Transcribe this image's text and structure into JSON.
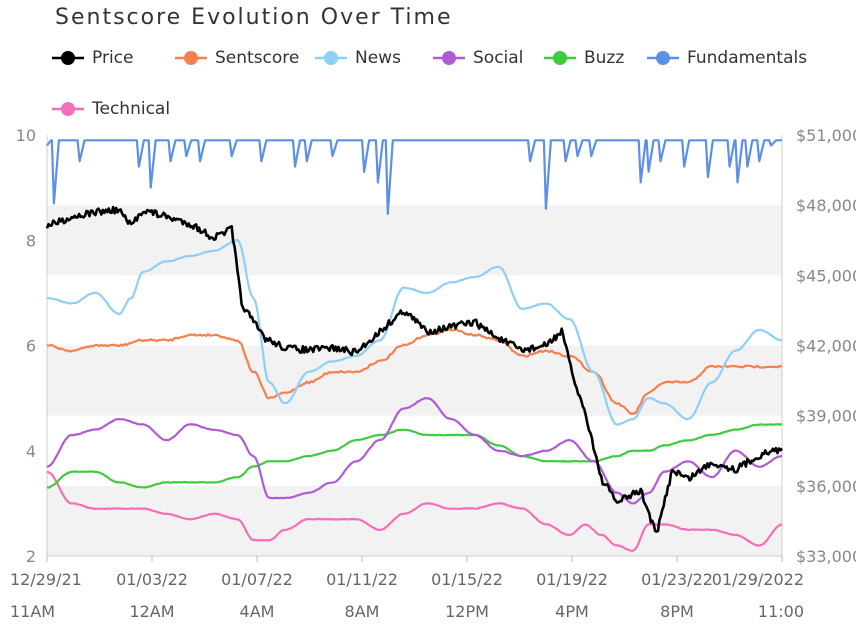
{
  "chart_data": {
    "type": "line",
    "title": "Sentscore Evolution Over Time",
    "x_tick_labels": [
      {
        "date": "12/29/21",
        "time": "11AM"
      },
      {
        "date": "01/03/22",
        "time": "12AM"
      },
      {
        "date": "01/07/22",
        "time": "4AM"
      },
      {
        "date": "01/11/22",
        "time": "8AM"
      },
      {
        "date": "01/15/22",
        "time": "12PM"
      },
      {
        "date": "01/19/22",
        "time": "4PM"
      },
      {
        "date": "01/23/22",
        "time": "8PM"
      },
      {
        "date": "01/29/2022",
        "time": "11:00"
      }
    ],
    "xlim": [
      "2021-12-29T11:00",
      "2022-01-29T11:00"
    ],
    "y_left": {
      "ylim": [
        2,
        10
      ],
      "ticks": [
        "2",
        "4",
        "6",
        "8",
        "10"
      ]
    },
    "y_right": {
      "ylim": [
        33000,
        51000
      ],
      "ticks": [
        "$33,000",
        "$36,000",
        "$39,000",
        "$42,000",
        "$45,000",
        "$48,000",
        "$51,000"
      ]
    },
    "grid": "horizontal bands",
    "legend_position": "top",
    "series": [
      {
        "name": "Price",
        "color": "#000000",
        "axis": "right",
        "points": [
          [
            "2021-12-29T11:00",
            47100
          ],
          [
            "2021-12-30T12:00",
            47500
          ],
          [
            "2021-12-31T12:00",
            47700
          ],
          [
            "2022-01-01T12:00",
            47800
          ],
          [
            "2022-01-02T00:00",
            47100
          ],
          [
            "2022-01-02T12:00",
            47800
          ],
          [
            "2022-01-03T12:00",
            47500
          ],
          [
            "2022-01-04T12:00",
            47200
          ],
          [
            "2022-01-05T12:00",
            46600
          ],
          [
            "2022-01-06T06:00",
            47000
          ],
          [
            "2022-01-06T16:00",
            43800
          ],
          [
            "2022-01-07T04:00",
            43000
          ],
          [
            "2022-01-07T16:00",
            42300
          ],
          [
            "2022-01-08T12:00",
            41900
          ],
          [
            "2022-01-09T12:00",
            41800
          ],
          [
            "2022-01-10T12:00",
            41900
          ],
          [
            "2022-01-11T12:00",
            41700
          ],
          [
            "2022-01-12T12:00",
            42600
          ],
          [
            "2022-01-13T12:00",
            43500
          ],
          [
            "2022-01-14T12:00",
            42600
          ],
          [
            "2022-01-15T12:00",
            42800
          ],
          [
            "2022-01-16T12:00",
            43000
          ],
          [
            "2022-01-17T12:00",
            42300
          ],
          [
            "2022-01-18T12:00",
            41800
          ],
          [
            "2022-01-19T12:00",
            42000
          ],
          [
            "2022-01-20T04:00",
            42600
          ],
          [
            "2022-01-20T16:00",
            40600
          ],
          [
            "2022-01-21T06:00",
            38800
          ],
          [
            "2022-01-21T20:00",
            36300
          ],
          [
            "2022-01-22T12:00",
            35300
          ],
          [
            "2022-01-23T12:00",
            35800
          ],
          [
            "2022-01-24T04:00",
            33900
          ],
          [
            "2022-01-24T20:00",
            36700
          ],
          [
            "2022-01-25T12:00",
            36300
          ],
          [
            "2022-01-26T12:00",
            37000
          ],
          [
            "2022-01-27T12:00",
            36700
          ],
          [
            "2022-01-28T12:00",
            37300
          ],
          [
            "2022-01-29T11:00",
            37600
          ]
        ]
      },
      {
        "name": "Sentscore",
        "color": "#f5804e",
        "axis": "left",
        "points": [
          [
            "2021-12-29T11:00",
            6.0
          ],
          [
            "2021-12-30T12:00",
            5.9
          ],
          [
            "2021-12-31T12:00",
            6.0
          ],
          [
            "2022-01-01T12:00",
            6.0
          ],
          [
            "2022-01-02T12:00",
            6.1
          ],
          [
            "2022-01-03T12:00",
            6.1
          ],
          [
            "2022-01-04T12:00",
            6.2
          ],
          [
            "2022-01-05T12:00",
            6.2
          ],
          [
            "2022-01-06T12:00",
            6.1
          ],
          [
            "2022-01-07T04:00",
            5.5
          ],
          [
            "2022-01-07T20:00",
            5.0
          ],
          [
            "2022-01-08T12:00",
            5.1
          ],
          [
            "2022-01-09T12:00",
            5.3
          ],
          [
            "2022-01-10T12:00",
            5.5
          ],
          [
            "2022-01-11T12:00",
            5.5
          ],
          [
            "2022-01-12T12:00",
            5.7
          ],
          [
            "2022-01-13T12:00",
            6.0
          ],
          [
            "2022-01-14T12:00",
            6.2
          ],
          [
            "2022-01-15T12:00",
            6.3
          ],
          [
            "2022-01-16T12:00",
            6.2
          ],
          [
            "2022-01-17T12:00",
            6.1
          ],
          [
            "2022-01-18T12:00",
            5.8
          ],
          [
            "2022-01-19T12:00",
            5.9
          ],
          [
            "2022-01-20T12:00",
            5.8
          ],
          [
            "2022-01-21T12:00",
            5.5
          ],
          [
            "2022-01-22T12:00",
            4.9
          ],
          [
            "2022-01-23T04:00",
            4.7
          ],
          [
            "2022-01-23T20:00",
            5.1
          ],
          [
            "2022-01-24T12:00",
            5.3
          ],
          [
            "2022-01-25T12:00",
            5.3
          ],
          [
            "2022-01-26T12:00",
            5.6
          ],
          [
            "2022-01-27T12:00",
            5.6
          ],
          [
            "2022-01-28T12:00",
            5.6
          ],
          [
            "2022-01-29T11:00",
            5.6
          ]
        ]
      },
      {
        "name": "News",
        "color": "#8ecff5",
        "axis": "left",
        "points": [
          [
            "2021-12-29T11:00",
            6.9
          ],
          [
            "2021-12-30T12:00",
            6.8
          ],
          [
            "2021-12-31T12:00",
            7.0
          ],
          [
            "2022-01-01T12:00",
            6.6
          ],
          [
            "2022-01-02T00:00",
            6.9
          ],
          [
            "2022-01-02T12:00",
            7.4
          ],
          [
            "2022-01-03T12:00",
            7.6
          ],
          [
            "2022-01-04T12:00",
            7.7
          ],
          [
            "2022-01-05T12:00",
            7.8
          ],
          [
            "2022-01-06T12:00",
            8.0
          ],
          [
            "2022-01-07T04:00",
            6.9
          ],
          [
            "2022-01-07T20:00",
            5.3
          ],
          [
            "2022-01-08T12:00",
            4.9
          ],
          [
            "2022-01-09T12:00",
            5.5
          ],
          [
            "2022-01-10T12:00",
            5.7
          ],
          [
            "2022-01-11T12:00",
            5.8
          ],
          [
            "2022-01-12T12:00",
            6.1
          ],
          [
            "2022-01-13T12:00",
            7.1
          ],
          [
            "2022-01-14T12:00",
            7.0
          ],
          [
            "2022-01-15T12:00",
            7.2
          ],
          [
            "2022-01-16T12:00",
            7.3
          ],
          [
            "2022-01-17T12:00",
            7.5
          ],
          [
            "2022-01-18T12:00",
            6.7
          ],
          [
            "2022-01-19T12:00",
            6.8
          ],
          [
            "2022-01-20T12:00",
            6.5
          ],
          [
            "2022-01-21T12:00",
            5.5
          ],
          [
            "2022-01-22T12:00",
            4.5
          ],
          [
            "2022-01-23T04:00",
            4.6
          ],
          [
            "2022-01-23T20:00",
            5.0
          ],
          [
            "2022-01-24T12:00",
            4.9
          ],
          [
            "2022-01-25T12:00",
            4.6
          ],
          [
            "2022-01-26T12:00",
            5.3
          ],
          [
            "2022-01-27T12:00",
            5.9
          ],
          [
            "2022-01-28T12:00",
            6.3
          ],
          [
            "2022-01-29T11:00",
            6.1
          ]
        ]
      },
      {
        "name": "Social",
        "color": "#b05bd6",
        "axis": "left",
        "points": [
          [
            "2021-12-29T11:00",
            3.7
          ],
          [
            "2021-12-30T12:00",
            4.3
          ],
          [
            "2021-12-31T12:00",
            4.4
          ],
          [
            "2022-01-01T12:00",
            4.6
          ],
          [
            "2022-01-02T12:00",
            4.5
          ],
          [
            "2022-01-03T12:00",
            4.2
          ],
          [
            "2022-01-04T12:00",
            4.5
          ],
          [
            "2022-01-05T12:00",
            4.4
          ],
          [
            "2022-01-06T12:00",
            4.3
          ],
          [
            "2022-01-07T04:00",
            3.9
          ],
          [
            "2022-01-07T20:00",
            3.1
          ],
          [
            "2022-01-08T12:00",
            3.1
          ],
          [
            "2022-01-09T12:00",
            3.2
          ],
          [
            "2022-01-10T12:00",
            3.4
          ],
          [
            "2022-01-11T12:00",
            3.8
          ],
          [
            "2022-01-12T12:00",
            4.2
          ],
          [
            "2022-01-13T12:00",
            4.8
          ],
          [
            "2022-01-14T12:00",
            5.0
          ],
          [
            "2022-01-15T12:00",
            4.6
          ],
          [
            "2022-01-16T12:00",
            4.3
          ],
          [
            "2022-01-17T12:00",
            4.0
          ],
          [
            "2022-01-18T12:00",
            3.9
          ],
          [
            "2022-01-19T12:00",
            4.0
          ],
          [
            "2022-01-20T12:00",
            4.2
          ],
          [
            "2022-01-21T12:00",
            3.8
          ],
          [
            "2022-01-22T12:00",
            3.2
          ],
          [
            "2022-01-23T04:00",
            3.0
          ],
          [
            "2022-01-23T20:00",
            3.2
          ],
          [
            "2022-01-24T12:00",
            3.6
          ],
          [
            "2022-01-25T12:00",
            3.8
          ],
          [
            "2022-01-26T12:00",
            3.5
          ],
          [
            "2022-01-27T12:00",
            4.0
          ],
          [
            "2022-01-28T12:00",
            3.7
          ],
          [
            "2022-01-29T11:00",
            3.9
          ]
        ]
      },
      {
        "name": "Buzz",
        "color": "#3ecc3e",
        "axis": "left",
        "points": [
          [
            "2021-12-29T11:00",
            3.3
          ],
          [
            "2021-12-30T12:00",
            3.6
          ],
          [
            "2021-12-31T12:00",
            3.6
          ],
          [
            "2022-01-01T12:00",
            3.4
          ],
          [
            "2022-01-02T12:00",
            3.3
          ],
          [
            "2022-01-03T12:00",
            3.4
          ],
          [
            "2022-01-04T12:00",
            3.4
          ],
          [
            "2022-01-05T12:00",
            3.4
          ],
          [
            "2022-01-06T12:00",
            3.5
          ],
          [
            "2022-01-07T04:00",
            3.7
          ],
          [
            "2022-01-07T20:00",
            3.8
          ],
          [
            "2022-01-08T12:00",
            3.8
          ],
          [
            "2022-01-09T12:00",
            3.9
          ],
          [
            "2022-01-10T12:00",
            4.0
          ],
          [
            "2022-01-11T12:00",
            4.2
          ],
          [
            "2022-01-12T12:00",
            4.3
          ],
          [
            "2022-01-13T12:00",
            4.4
          ],
          [
            "2022-01-14T12:00",
            4.3
          ],
          [
            "2022-01-15T12:00",
            4.3
          ],
          [
            "2022-01-16T12:00",
            4.3
          ],
          [
            "2022-01-17T12:00",
            4.1
          ],
          [
            "2022-01-18T12:00",
            3.9
          ],
          [
            "2022-01-19T12:00",
            3.8
          ],
          [
            "2022-01-20T12:00",
            3.8
          ],
          [
            "2022-01-21T12:00",
            3.8
          ],
          [
            "2022-01-22T12:00",
            3.9
          ],
          [
            "2022-01-23T04:00",
            4.0
          ],
          [
            "2022-01-23T20:00",
            4.0
          ],
          [
            "2022-01-24T12:00",
            4.1
          ],
          [
            "2022-01-25T12:00",
            4.2
          ],
          [
            "2022-01-26T12:00",
            4.3
          ],
          [
            "2022-01-27T12:00",
            4.4
          ],
          [
            "2022-01-28T12:00",
            4.5
          ],
          [
            "2022-01-29T11:00",
            4.5
          ]
        ]
      },
      {
        "name": "Fundamentals",
        "color": "#5b8fe8",
        "axis": "left",
        "baseline": 9.9,
        "dips": [
          [
            "2021-12-29T18:00",
            8.7
          ],
          [
            "2021-12-30T20:00",
            9.5
          ],
          [
            "2022-01-02T08:00",
            9.4
          ],
          [
            "2022-01-02T20:00",
            9.0
          ],
          [
            "2022-01-03T16:00",
            9.5
          ],
          [
            "2022-01-04T08:00",
            9.6
          ],
          [
            "2022-01-04T22:00",
            9.5
          ],
          [
            "2022-01-06T06:00",
            9.6
          ],
          [
            "2022-01-07T12:00",
            9.5
          ],
          [
            "2022-01-08T22:00",
            9.4
          ],
          [
            "2022-01-09T10:00",
            9.5
          ],
          [
            "2022-01-10T12:00",
            9.6
          ],
          [
            "2022-01-11T20:00",
            9.3
          ],
          [
            "2022-01-12T10:00",
            9.1
          ],
          [
            "2022-01-12T20:00",
            8.5
          ],
          [
            "2022-01-18T20:00",
            9.5
          ],
          [
            "2022-01-19T12:00",
            8.6
          ],
          [
            "2022-01-20T08:00",
            9.5
          ],
          [
            "2022-01-20T20:00",
            9.6
          ],
          [
            "2022-01-21T10:00",
            9.6
          ],
          [
            "2022-01-23T12:00",
            9.1
          ],
          [
            "2022-01-23T20:00",
            9.3
          ],
          [
            "2022-01-24T08:00",
            9.5
          ],
          [
            "2022-01-25T08:00",
            9.4
          ],
          [
            "2022-01-26T08:00",
            9.2
          ],
          [
            "2022-01-27T06:00",
            9.4
          ],
          [
            "2022-01-27T14:00",
            9.1
          ],
          [
            "2022-01-28T00:00",
            9.4
          ],
          [
            "2022-01-28T12:00",
            9.5
          ],
          [
            "2022-01-29T00:00",
            9.8
          ]
        ]
      },
      {
        "name": "Technical",
        "color": "#f56eb8",
        "axis": "left",
        "points": [
          [
            "2021-12-29T11:00",
            3.6
          ],
          [
            "2021-12-30T12:00",
            3.0
          ],
          [
            "2021-12-31T12:00",
            2.9
          ],
          [
            "2022-01-01T12:00",
            2.9
          ],
          [
            "2022-01-02T12:00",
            2.9
          ],
          [
            "2022-01-03T12:00",
            2.8
          ],
          [
            "2022-01-04T12:00",
            2.7
          ],
          [
            "2022-01-05T12:00",
            2.8
          ],
          [
            "2022-01-06T12:00",
            2.7
          ],
          [
            "2022-01-07T04:00",
            2.3
          ],
          [
            "2022-01-07T20:00",
            2.3
          ],
          [
            "2022-01-08T12:00",
            2.5
          ],
          [
            "2022-01-09T12:00",
            2.7
          ],
          [
            "2022-01-10T12:00",
            2.7
          ],
          [
            "2022-01-11T12:00",
            2.7
          ],
          [
            "2022-01-12T12:00",
            2.5
          ],
          [
            "2022-01-13T12:00",
            2.8
          ],
          [
            "2022-01-14T12:00",
            3.0
          ],
          [
            "2022-01-15T12:00",
            2.9
          ],
          [
            "2022-01-16T12:00",
            2.9
          ],
          [
            "2022-01-17T12:00",
            3.0
          ],
          [
            "2022-01-18T12:00",
            2.9
          ],
          [
            "2022-01-19T12:00",
            2.6
          ],
          [
            "2022-01-20T12:00",
            2.4
          ],
          [
            "2022-01-21T04:00",
            2.6
          ],
          [
            "2022-01-21T20:00",
            2.4
          ],
          [
            "2022-01-22T12:00",
            2.2
          ],
          [
            "2022-01-23T04:00",
            2.1
          ],
          [
            "2022-01-23T20:00",
            2.6
          ],
          [
            "2022-01-24T12:00",
            2.6
          ],
          [
            "2022-01-25T12:00",
            2.5
          ],
          [
            "2022-01-26T12:00",
            2.5
          ],
          [
            "2022-01-27T12:00",
            2.4
          ],
          [
            "2022-01-28T12:00",
            2.2
          ],
          [
            "2022-01-29T11:00",
            2.6
          ]
        ]
      }
    ]
  }
}
